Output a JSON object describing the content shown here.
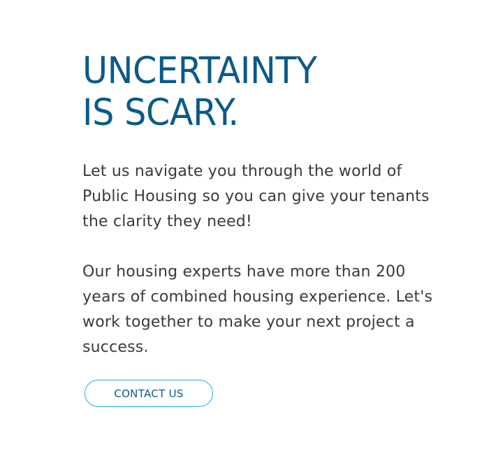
{
  "headline": {
    "line1": "UNCERTAINTY",
    "line2": "IS SCARY."
  },
  "paragraphs": {
    "intro": "Let us navigate you through the world of Public Housing so you can give your tenants the clarity they need!",
    "experience": "Our housing experts have more than 200 years of combined housing experience. Let's work together to make your next project a success."
  },
  "cta": {
    "label": "CONTACT US"
  },
  "colors": {
    "headline": "#0b5a8a",
    "body_text": "#3a3a3a",
    "button_border": "#21a9e1",
    "background": "#ffffff"
  }
}
